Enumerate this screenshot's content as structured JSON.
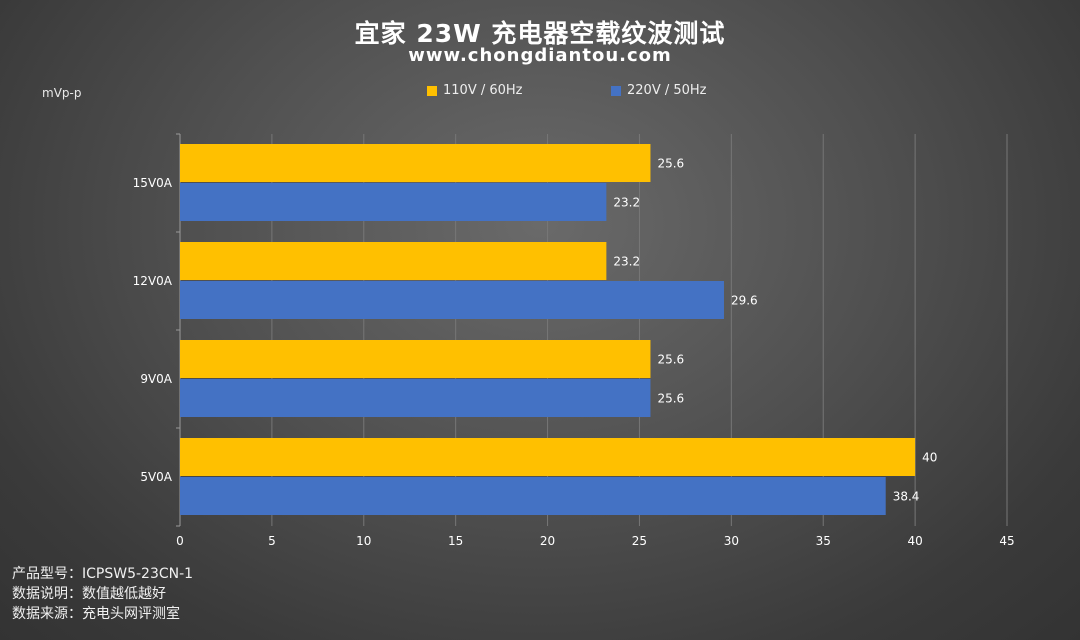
{
  "title": "宜家 23W 充电器空载纹波测试",
  "subtitle": "www.chongdiantou.com",
  "unit_label": "mVp-p",
  "colors": {
    "series_110": "#FFC000",
    "series_220": "#4472C4",
    "grid": "#777777",
    "axis": "#9a9a9a",
    "text": "#ffffff"
  },
  "footer": {
    "line1": "产品型号：ICPSW5-23CN-1",
    "line2": "数据说明：数值越低越好",
    "line3": "数据来源：充电头网评测室"
  },
  "chart_data": {
    "type": "bar",
    "orientation": "horizontal",
    "categories": [
      "15V0A",
      "12V0A",
      "9V0A",
      "5V0A"
    ],
    "series": [
      {
        "name": "110V / 60Hz",
        "values": [
          25.6,
          23.2,
          25.6,
          40
        ]
      },
      {
        "name": "220V / 50Hz",
        "values": [
          23.2,
          29.6,
          25.6,
          38.4
        ]
      }
    ],
    "xlim": [
      0,
      45
    ],
    "xticks": [
      0,
      5,
      10,
      15,
      20,
      25,
      30,
      35,
      40,
      45
    ],
    "grid": true,
    "legend_position": "top"
  }
}
